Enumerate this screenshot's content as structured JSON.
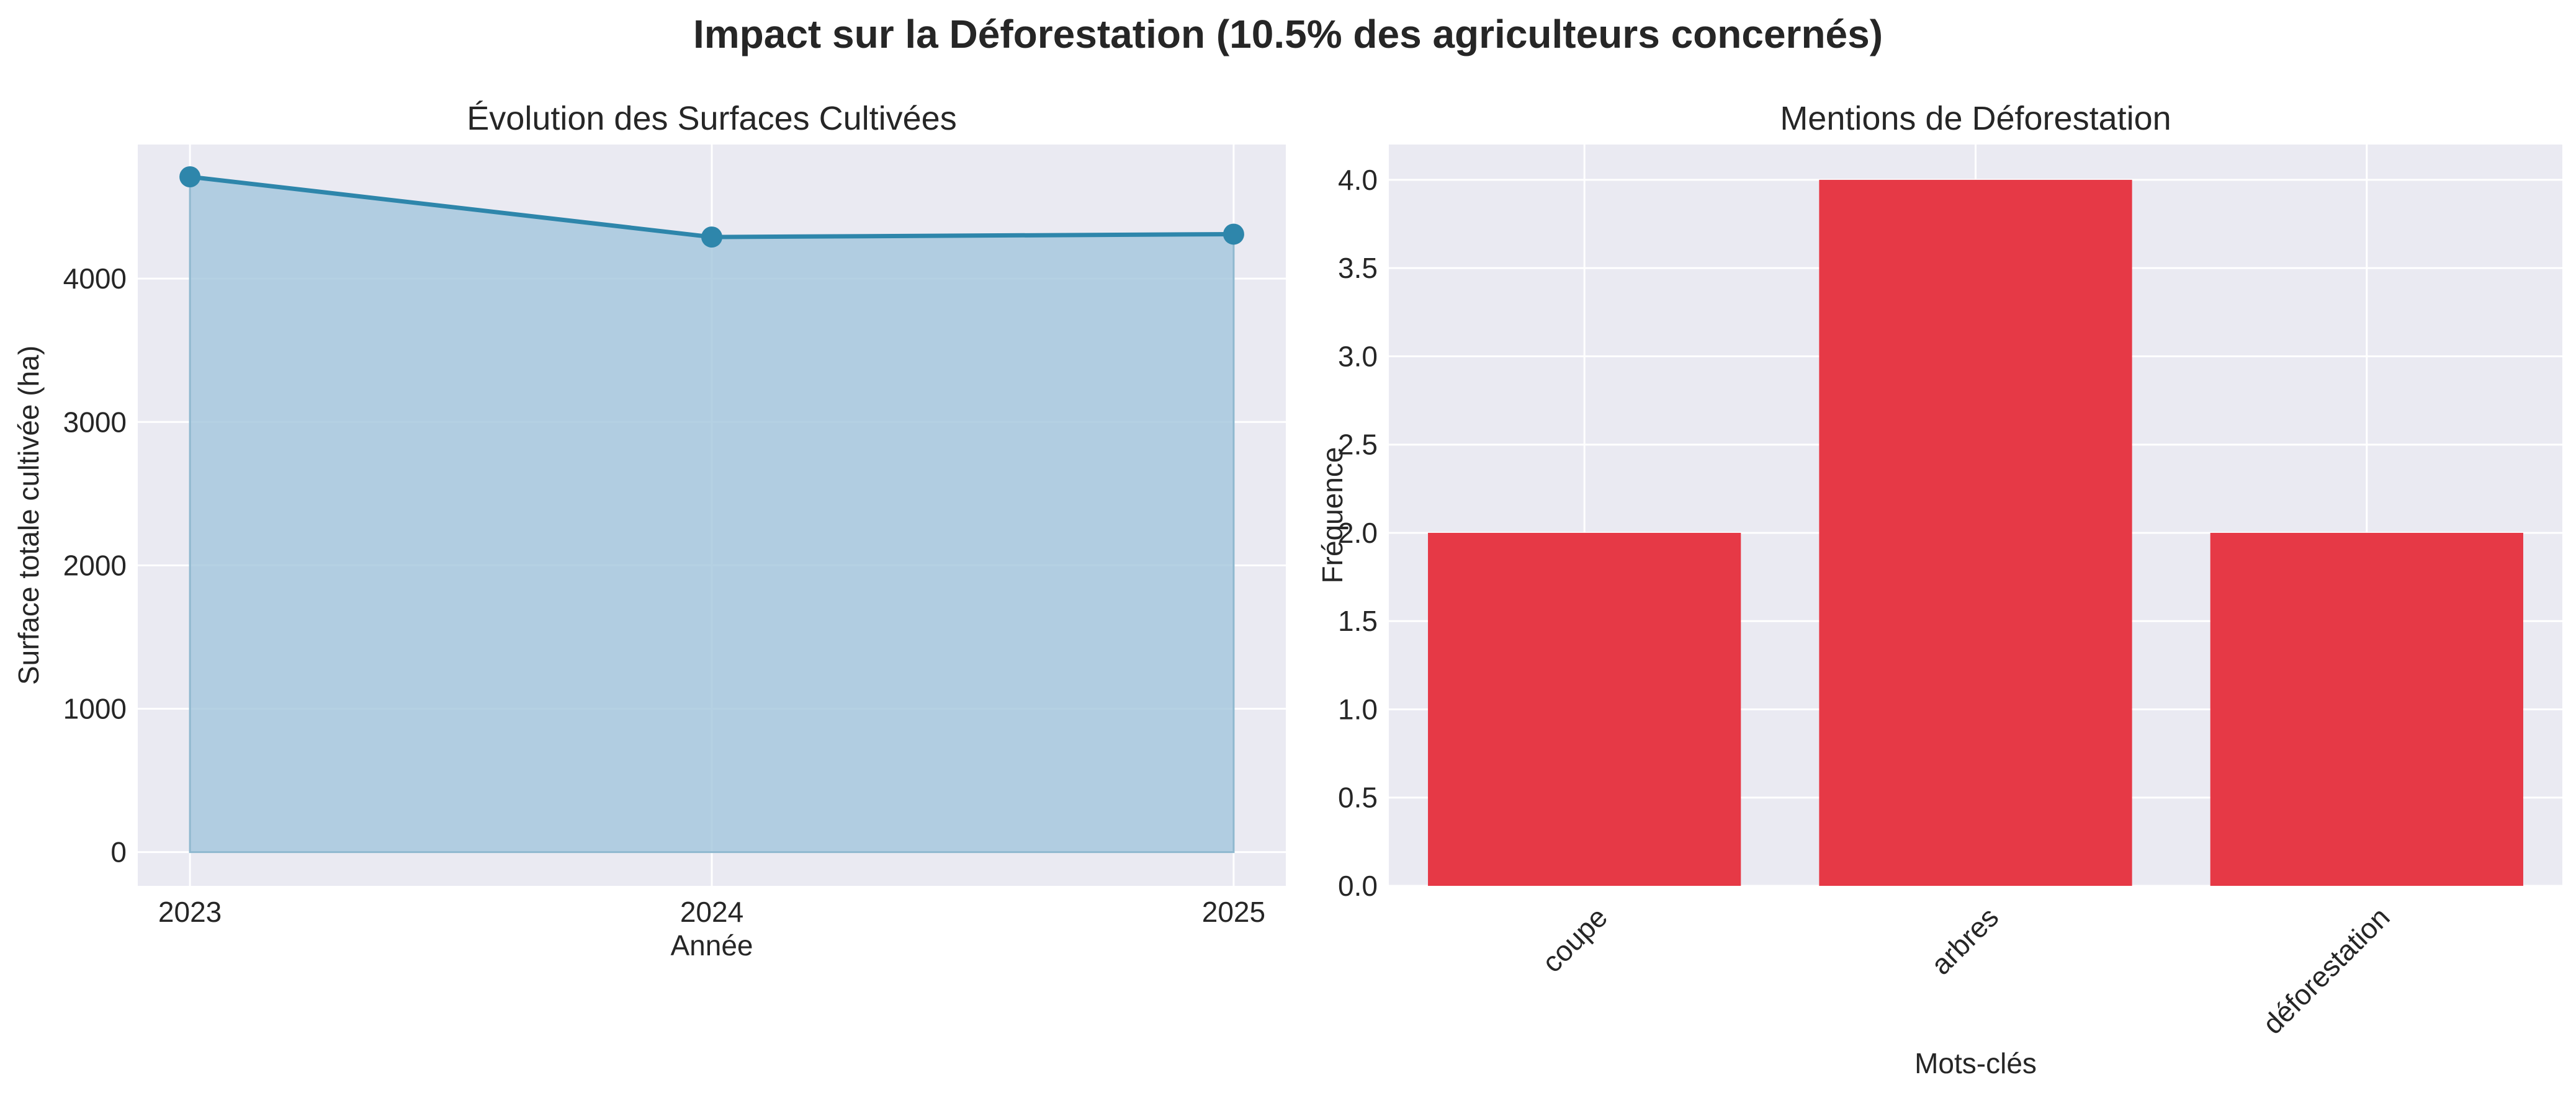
{
  "figure": {
    "title": "Impact sur la Déforestation (10.5% des agriculteurs concernés)"
  },
  "colors": {
    "plot_background": "#eaeaf2",
    "grid": "#ffffff",
    "line": "#2e86ab",
    "area_fill": "#a3c6dc",
    "bar": "#e63946",
    "text": "#262626"
  },
  "chart_data": [
    {
      "type": "area",
      "title": "Évolution des Surfaces Cultivées",
      "xlabel": "Année",
      "ylabel": "Surface totale cultivée (ha)",
      "x": [
        2023,
        2024,
        2025
      ],
      "x_tick_labels": [
        "2023",
        "2024",
        "2025"
      ],
      "series": [
        {
          "values": [
            4710,
            4290,
            4310
          ]
        }
      ],
      "y_ticks": [
        0,
        1000,
        2000,
        3000,
        4000
      ],
      "y_tick_labels": [
        "0",
        "1000",
        "2000",
        "3000",
        "4000"
      ],
      "xlim": [
        2022.9,
        2025.1
      ],
      "ylim": [
        -235,
        4935
      ],
      "grid": true,
      "marker": "circle"
    },
    {
      "type": "bar",
      "title": "Mentions de Déforestation",
      "xlabel": "Mots-clés",
      "ylabel": "Fréquence",
      "categories": [
        "coupe",
        "arbres",
        "déforestation"
      ],
      "values": [
        2,
        4,
        2
      ],
      "y_ticks": [
        0.0,
        0.5,
        1.0,
        1.5,
        2.0,
        2.5,
        3.0,
        3.5,
        4.0
      ],
      "y_tick_labels": [
        "0.0",
        "0.5",
        "1.0",
        "1.5",
        "2.0",
        "2.5",
        "3.0",
        "3.5",
        "4.0"
      ],
      "ylim": [
        0,
        4.2
      ],
      "grid": true,
      "x_tick_rotation": 45
    }
  ]
}
